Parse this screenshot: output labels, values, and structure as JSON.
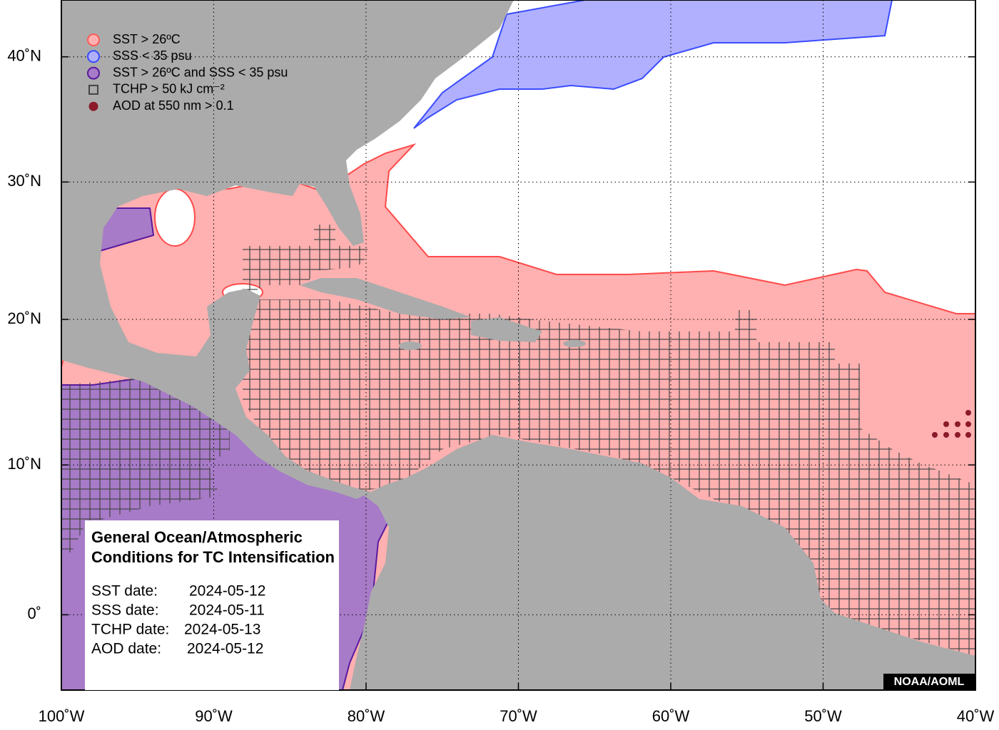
{
  "map": {
    "xlim": [
      -100,
      -40
    ],
    "ylim": [
      -5,
      45
    ],
    "xticks": [
      {
        "value": -100,
        "label": "100˚W"
      },
      {
        "value": -90,
        "label": "90˚W"
      },
      {
        "value": -80,
        "label": "80˚W"
      },
      {
        "value": -70,
        "label": "70˚W"
      },
      {
        "value": -60,
        "label": "60˚W"
      },
      {
        "value": -50,
        "label": "50˚W"
      },
      {
        "value": -40,
        "label": "40˚W"
      }
    ],
    "yticks": [
      {
        "value": 0,
        "label": "0˚"
      },
      {
        "value": 10,
        "label": "10˚N"
      },
      {
        "value": 20,
        "label": "20˚N"
      },
      {
        "value": 30,
        "label": "30˚N"
      },
      {
        "value": 40,
        "label": "40˚N"
      }
    ],
    "grid": true
  },
  "legend": {
    "items": [
      {
        "label": "SST > 26ºC",
        "marker": "circle",
        "stroke": "#ff5a5a",
        "fill": "#ffb0b0"
      },
      {
        "label": "SSS < 35 psu",
        "marker": "circle",
        "stroke": "#3a4cff",
        "fill": "#b0b0ff"
      },
      {
        "label": "SST > 26ºC and SSS < 35 psu",
        "marker": "circle",
        "stroke": "#5a1aa0",
        "fill": "#a77bc8"
      },
      {
        "label": "TCHP > 50 kJ cm⁻²",
        "marker": "square",
        "stroke": "#444444",
        "fill": "none"
      },
      {
        "label": "AOD at 550 nm > 0.1",
        "marker": "dot",
        "stroke": "#8b1a2a",
        "fill": "#8b1a2a"
      }
    ]
  },
  "info_box": {
    "title": [
      "General Ocean/Atmospheric",
      "Conditions for TC Intensification"
    ],
    "dates": [
      {
        "label": "SST date:",
        "value": "2024-05-12"
      },
      {
        "label": "SSS date:",
        "value": "2024-05-11"
      },
      {
        "label": "TCHP date:",
        "value": "2024-05-13"
      },
      {
        "label": "AOD date:",
        "value": "2024-05-12"
      }
    ]
  },
  "credit": "NOAA/AOML"
}
